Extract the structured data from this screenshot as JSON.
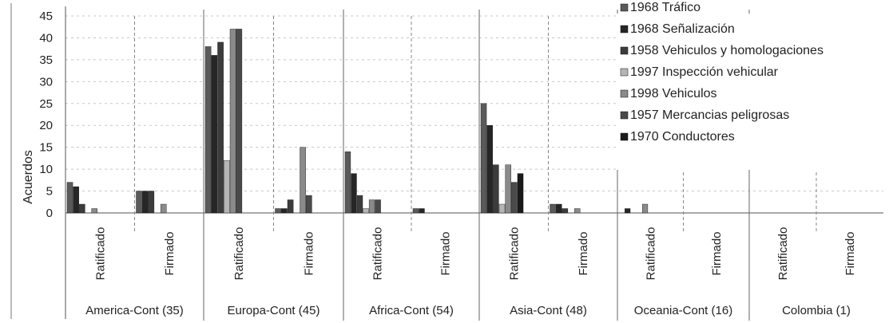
{
  "chart_data": {
    "type": "bar",
    "ylabel": "Acuerdos",
    "ylim": [
      0,
      45
    ],
    "yticks": [
      0,
      5,
      10,
      15,
      20,
      25,
      30,
      35,
      40,
      45
    ],
    "grid": true,
    "legend_position": "top-right",
    "groups": [
      {
        "label": "America-Cont (35)",
        "subcategories": [
          "Ratificado",
          "Firmado"
        ]
      },
      {
        "label": "Europa-Cont (45)",
        "subcategories": [
          "Ratificado",
          "Firmado"
        ]
      },
      {
        "label": "Africa-Cont (54)",
        "subcategories": [
          "Ratificado",
          "Firmado"
        ]
      },
      {
        "label": "Asia-Cont (48)",
        "subcategories": [
          "Ratificado",
          "Firmado"
        ]
      },
      {
        "label": "Oceania-Cont (16)",
        "subcategories": [
          "Ratificado",
          "Firmado"
        ]
      },
      {
        "label": "Colombia (1)",
        "subcategories": [
          "Ratificado",
          "Firmado"
        ]
      }
    ],
    "series": [
      {
        "name": "1968 Tráfico",
        "color": "#5a5a5a",
        "values": [
          7,
          5,
          38,
          1,
          14,
          1,
          25,
          2,
          0,
          0,
          0,
          0
        ]
      },
      {
        "name": "1968 Señalización",
        "color": "#262626",
        "values": [
          6,
          5,
          36,
          1,
          9,
          1,
          20,
          2,
          1,
          0,
          0,
          0
        ]
      },
      {
        "name": "1958 Vehiculos y homologaciones",
        "color": "#3c3c3c",
        "values": [
          2,
          5,
          39,
          3,
          4,
          0,
          11,
          1,
          0,
          0,
          0,
          0
        ]
      },
      {
        "name": "1997 Inspección vehicular",
        "color": "#b5b5b5",
        "values": [
          0,
          0,
          12,
          0,
          1,
          0,
          2,
          0,
          0,
          0,
          0,
          0
        ]
      },
      {
        "name": "1998 Vehiculos",
        "color": "#8a8a8a",
        "values": [
          1,
          2,
          42,
          15,
          3,
          0,
          11,
          1,
          2,
          0,
          0,
          0
        ]
      },
      {
        "name": "1957 Mercancias peligrosas",
        "color": "#4a4a4a",
        "values": [
          0,
          0,
          42,
          4,
          3,
          0,
          7,
          0,
          0,
          0,
          0,
          0
        ]
      },
      {
        "name": "1970 Conductores",
        "color": "#1a1a1a",
        "values": [
          0,
          0,
          0,
          0,
          0,
          0,
          9,
          0,
          0,
          0,
          0,
          0
        ]
      }
    ]
  }
}
